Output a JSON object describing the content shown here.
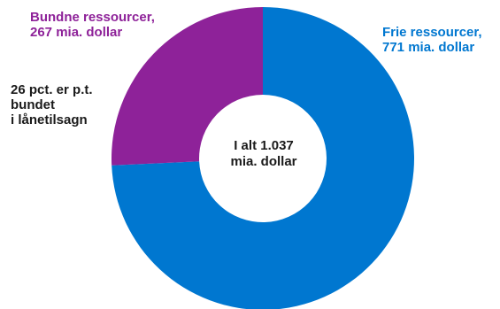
{
  "chart_data": {
    "type": "pie",
    "categories": [
      "Frie ressourcer",
      "Bundne ressourcer"
    ],
    "values": [
      771,
      267
    ],
    "unit": "mia. dollar",
    "colors": [
      "#0077d0",
      "#8e2299"
    ],
    "donut": true,
    "start_angle_deg": 0,
    "direction": "clockwise",
    "labels": {
      "free": {
        "line1": "Frie ressourcer,",
        "line2": "771 mia. dollar",
        "color": "#0077d0"
      },
      "bound": {
        "line1": "Bundne ressourcer,",
        "line2": "267 mia. dollar",
        "color": "#8e2299"
      }
    },
    "annotation": {
      "line1": "26 pct. er p.t.",
      "line2": "bundet",
      "line3": "i lånetilsagn"
    },
    "center": {
      "line1": "I alt 1.037",
      "line2": "mia. dollar"
    }
  }
}
